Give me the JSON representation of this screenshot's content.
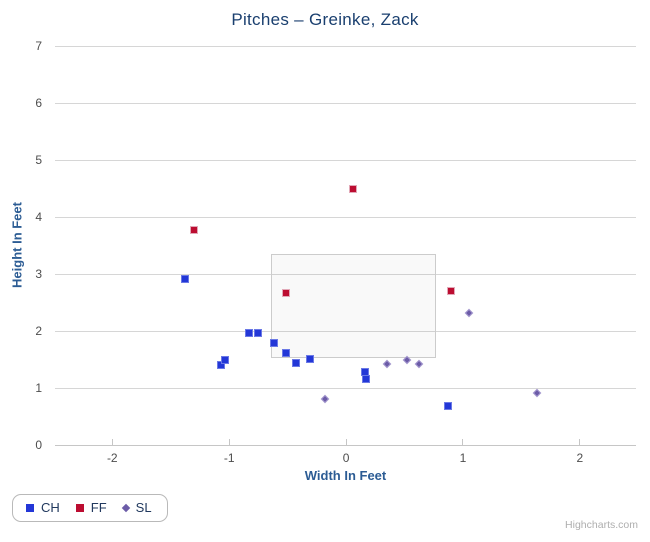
{
  "credits": "Highcharts.com",
  "chart_data": {
    "type": "scatter",
    "title": "Pitches – Greinke, Zack",
    "xlabel": "Width In Feet",
    "ylabel": "Height In Feet",
    "xlim": [
      -2.49,
      2.48
    ],
    "ylim": [
      0,
      7
    ],
    "x_ticks": [
      -2,
      -1,
      0,
      1,
      2
    ],
    "y_ticks": [
      0,
      1,
      2,
      3,
      4,
      5,
      6,
      7
    ],
    "grid": "horizontal-only",
    "legend_position": "bottom-left",
    "colors": {
      "CH": "#2337d7",
      "FF": "#bc0d31",
      "SL": "#6c5ca8"
    },
    "series": [
      {
        "name": "CH",
        "marker": "square",
        "color": "#2337d7",
        "points": [
          [
            -1.38,
            2.91
          ],
          [
            -1.07,
            1.4
          ],
          [
            -1.04,
            1.5
          ],
          [
            -0.83,
            1.97
          ],
          [
            -0.75,
            1.97
          ],
          [
            -0.62,
            1.79
          ],
          [
            -0.51,
            1.62
          ],
          [
            -0.43,
            1.44
          ],
          [
            -0.31,
            1.51
          ],
          [
            0.16,
            1.28
          ],
          [
            0.17,
            1.15
          ],
          [
            0.87,
            0.68
          ]
        ]
      },
      {
        "name": "FF",
        "marker": "square",
        "color": "#bc0d31",
        "points": [
          [
            -1.3,
            3.78
          ],
          [
            -0.51,
            2.67
          ],
          [
            0.06,
            4.5
          ],
          [
            0.9,
            2.7
          ]
        ]
      },
      {
        "name": "SL",
        "marker": "diamond",
        "color": "#6c5ca8",
        "points": [
          [
            -0.18,
            0.81
          ],
          [
            0.35,
            1.42
          ],
          [
            0.52,
            1.49
          ],
          [
            0.62,
            1.42
          ],
          [
            1.05,
            2.32
          ],
          [
            1.63,
            0.92
          ]
        ]
      }
    ],
    "annotations": [
      {
        "type": "rect",
        "name": "strike-zone",
        "x1": -0.64,
        "x2": 0.75,
        "y1": 1.57,
        "y2": 3.35
      }
    ]
  }
}
